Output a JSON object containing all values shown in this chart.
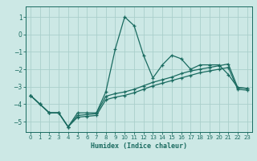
{
  "xlabel": "Humidex (Indice chaleur)",
  "background_color": "#cce8e5",
  "grid_color": "#aacfcb",
  "line_color": "#1a6b60",
  "xlim": [
    -0.5,
    23.5
  ],
  "ylim": [
    -5.6,
    1.6
  ],
  "xticks": [
    0,
    1,
    2,
    3,
    4,
    5,
    6,
    7,
    8,
    9,
    10,
    11,
    12,
    13,
    14,
    15,
    16,
    17,
    18,
    19,
    20,
    21,
    22,
    23
  ],
  "yticks": [
    -5,
    -4,
    -3,
    -2,
    -1,
    0,
    1
  ],
  "s1_x": [
    0,
    1,
    2,
    3,
    4,
    5,
    6,
    7,
    8,
    9,
    10,
    11,
    12,
    13,
    14,
    15,
    16,
    17,
    18,
    19,
    20,
    21,
    22,
    23
  ],
  "s1_y": [
    -3.5,
    -4.0,
    -4.5,
    -4.5,
    -5.3,
    -4.5,
    -4.5,
    -4.5,
    -3.3,
    -0.85,
    1.0,
    0.5,
    -1.2,
    -2.5,
    -1.75,
    -1.2,
    -1.4,
    -2.0,
    -1.75,
    -1.75,
    -1.75,
    -2.3,
    -3.05,
    -3.1
  ],
  "s2_x": [
    0,
    1,
    2,
    3,
    4,
    5,
    6,
    7,
    8,
    9,
    10,
    11,
    12,
    13,
    14,
    15,
    16,
    17,
    18,
    19,
    20,
    21,
    22,
    23
  ],
  "s2_y": [
    -3.5,
    -4.0,
    -4.5,
    -4.5,
    -5.3,
    -4.65,
    -4.6,
    -4.55,
    -3.55,
    -3.4,
    -3.3,
    -3.15,
    -2.95,
    -2.75,
    -2.6,
    -2.45,
    -2.25,
    -2.1,
    -2.0,
    -1.9,
    -1.8,
    -1.7,
    -3.05,
    -3.1
  ],
  "s3_x": [
    0,
    1,
    2,
    3,
    4,
    5,
    6,
    7,
    8,
    9,
    10,
    11,
    12,
    13,
    14,
    15,
    16,
    17,
    18,
    19,
    20,
    21,
    22,
    23
  ],
  "s3_y": [
    -3.5,
    -4.0,
    -4.5,
    -4.5,
    -5.3,
    -4.75,
    -4.7,
    -4.65,
    -3.75,
    -3.6,
    -3.5,
    -3.35,
    -3.15,
    -2.95,
    -2.8,
    -2.65,
    -2.5,
    -2.35,
    -2.2,
    -2.1,
    -2.0,
    -1.9,
    -3.15,
    -3.2
  ]
}
